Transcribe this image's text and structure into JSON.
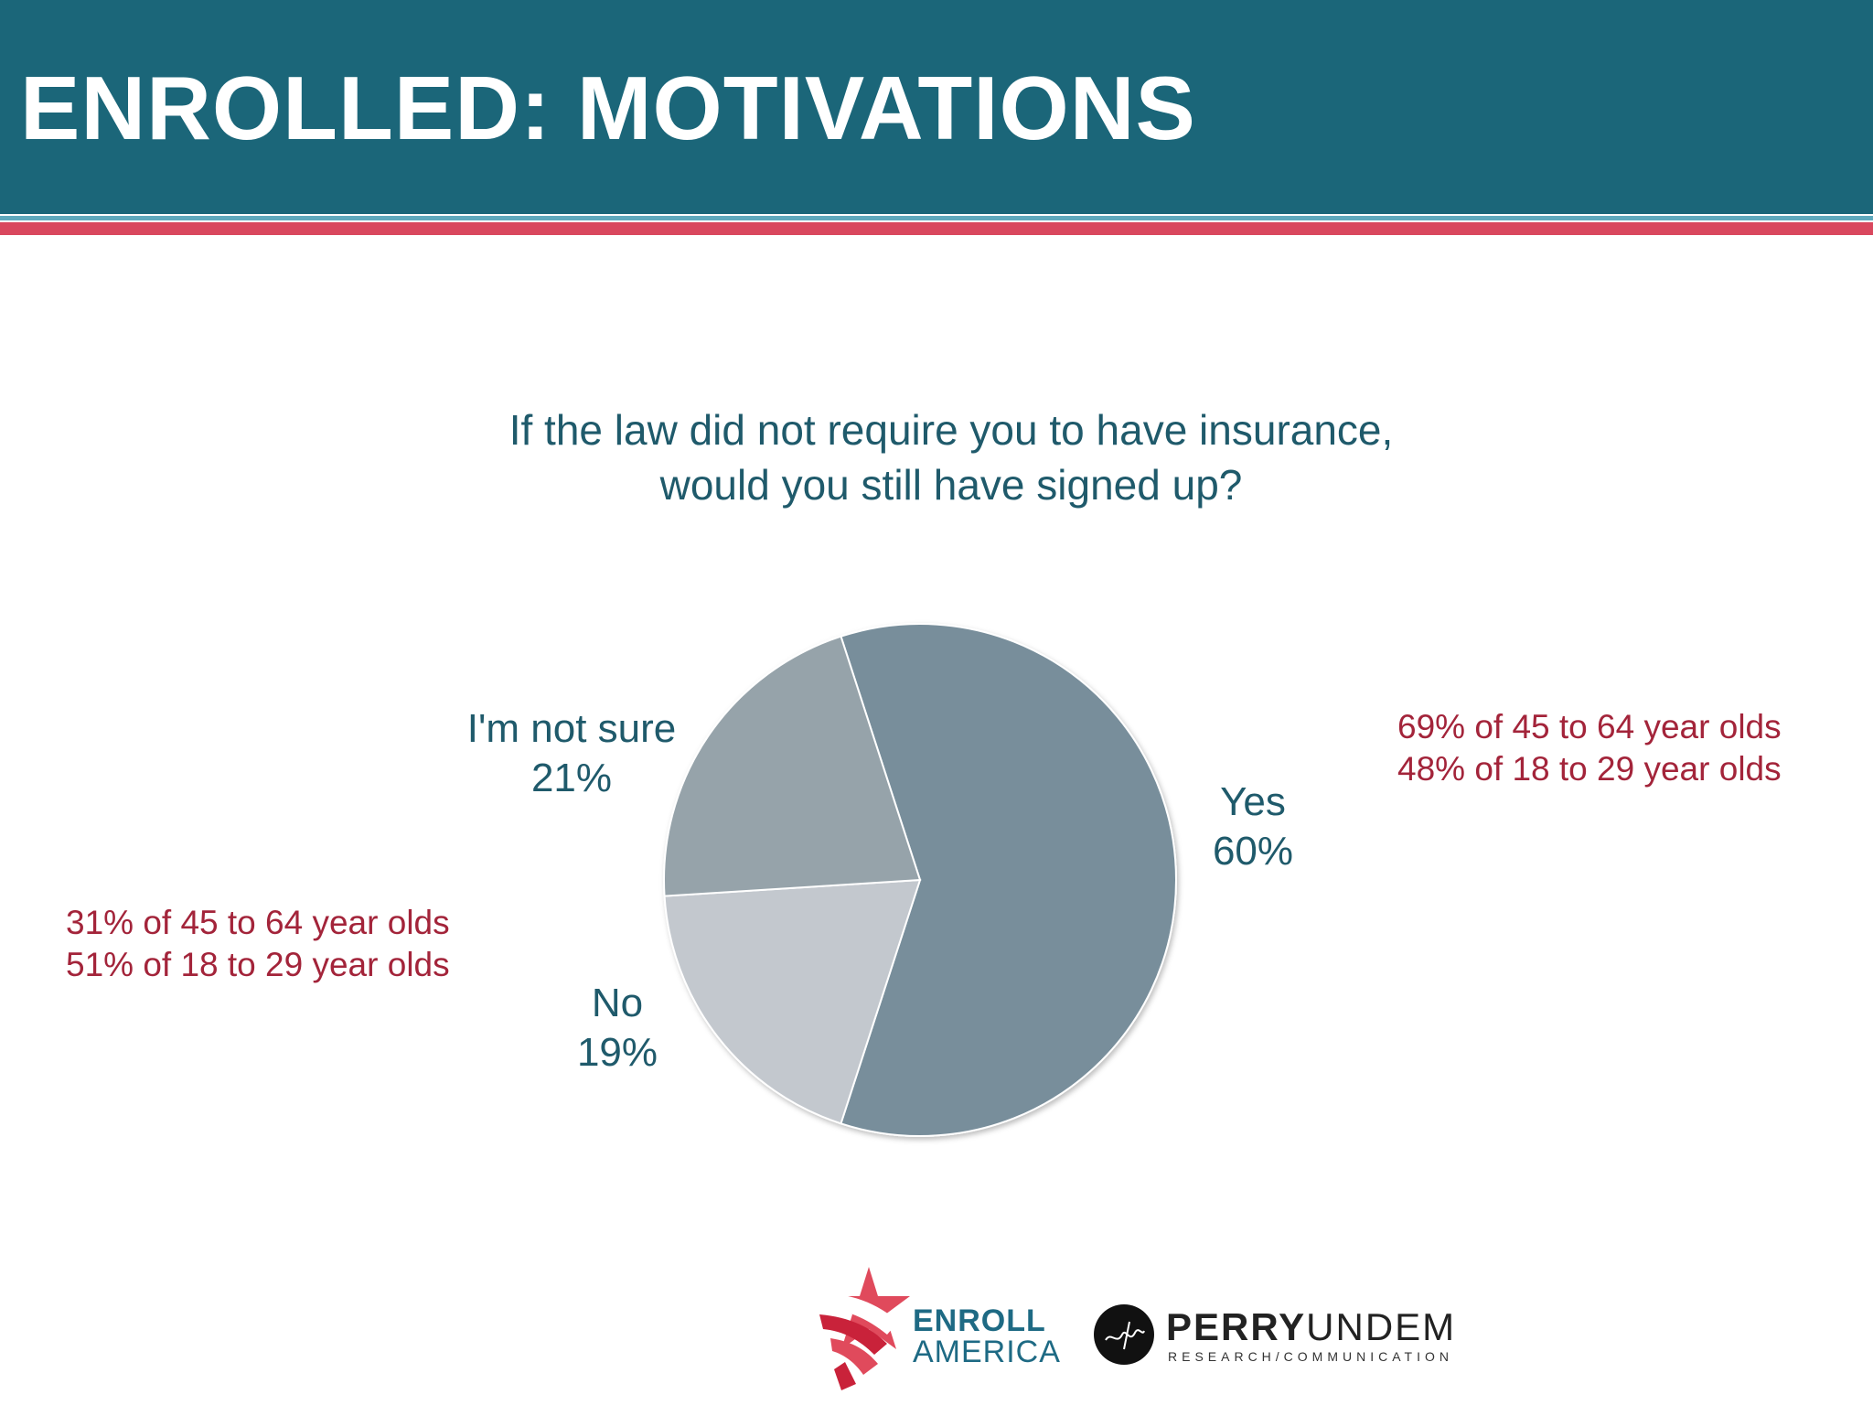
{
  "header": {
    "title": "ENROLLED: MOTIVATIONS"
  },
  "question": {
    "line1": "If the law did not require you to have insurance,",
    "line2": "would you still have signed up?"
  },
  "chart_data": {
    "type": "pie",
    "title": "If the law did not require you to have insurance, would you still have signed up?",
    "categories": [
      "Yes",
      "No",
      "I'm not sure"
    ],
    "values": [
      60,
      19,
      21
    ],
    "unit": "%",
    "colors": [
      "#788e9b",
      "#c3c8ce",
      "#96a3aa"
    ],
    "start_angle_deg": -18,
    "direction": "clockwise",
    "legend": "none"
  },
  "labels": {
    "yes": {
      "name": "Yes",
      "value": "60%"
    },
    "no": {
      "name": "No",
      "value": "19%"
    },
    "not_sure": {
      "name": "I'm not sure",
      "value": "21%"
    }
  },
  "notes": {
    "yes_breakdown": [
      "69% of 45 to 64 year olds",
      "48% of 18 to 29 year olds"
    ],
    "no_breakdown": [
      "31% of 45 to 64 year olds",
      "51% of 18 to 29 year olds"
    ]
  },
  "logos": {
    "enroll_line1": "ENROLL",
    "enroll_line2": "AMERICA",
    "perry_bold": "PERRY",
    "perry_light": "UNDEM",
    "perry_sub": "RESEARCH/COMMUNICATION"
  },
  "colors": {
    "header": "#1b6679",
    "accent_red": "#d9475e",
    "note_text": "#a3243a",
    "label_text": "#1f5a6b"
  }
}
